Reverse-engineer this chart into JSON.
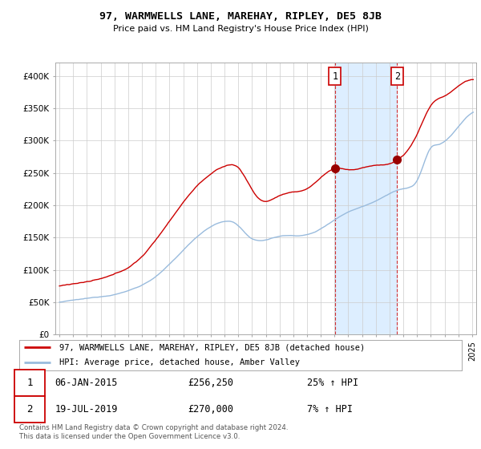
{
  "title": "97, WARMWELLS LANE, MAREHAY, RIPLEY, DE5 8JB",
  "subtitle": "Price paid vs. HM Land Registry's House Price Index (HPI)",
  "ylim": [
    0,
    420000
  ],
  "yticks": [
    0,
    50000,
    100000,
    150000,
    200000,
    250000,
    300000,
    350000,
    400000
  ],
  "ytick_labels": [
    "£0",
    "£50K",
    "£100K",
    "£150K",
    "£200K",
    "£250K",
    "£300K",
    "£350K",
    "£400K"
  ],
  "legend_line1": "97, WARMWELLS LANE, MAREHAY, RIPLEY, DE5 8JB (detached house)",
  "legend_line2": "HPI: Average price, detached house, Amber Valley",
  "annotation1_label": "1",
  "annotation1_date": "06-JAN-2015",
  "annotation1_price": "£256,250",
  "annotation1_hpi": "25% ↑ HPI",
  "annotation2_label": "2",
  "annotation2_date": "19-JUL-2019",
  "annotation2_price": "£270,000",
  "annotation2_hpi": "7% ↑ HPI",
  "footer": "Contains HM Land Registry data © Crown copyright and database right 2024.\nThis data is licensed under the Open Government Licence v3.0.",
  "red_color": "#cc0000",
  "blue_color": "#99bbdd",
  "shade_color": "#ddeeff",
  "background_color": "#ffffff",
  "grid_color": "#cccccc",
  "sale1_year": 2015.03,
  "sale1_price": 256250,
  "sale2_year": 2019.55,
  "sale2_price": 270000,
  "xlim_left": 1994.7,
  "xlim_right": 2025.3
}
